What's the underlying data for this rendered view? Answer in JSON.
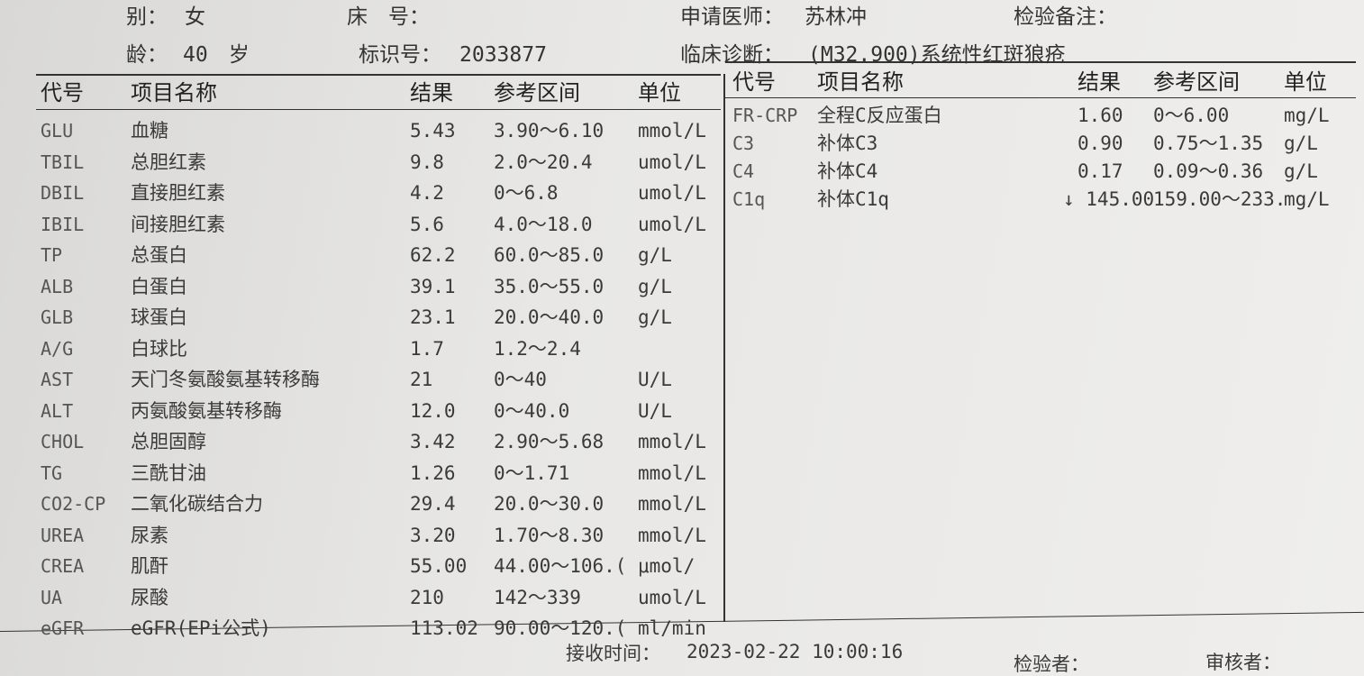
{
  "header": {
    "fields": [
      {
        "label": "别：",
        "value": "女"
      },
      {
        "label": "床　号："
      },
      {
        "label": "申请医师：",
        "value": "苏林冲"
      },
      {
        "label": "检验备注："
      },
      {
        "label": "龄：",
        "value": "40　岁"
      },
      {
        "label": "标识号：",
        "value": "2033877"
      },
      {
        "label": "临床诊断：",
        "value": "(M32.900)系统性红斑狼疮"
      }
    ]
  },
  "left_table": {
    "columns": [
      "代号",
      "项目名称",
      "结果",
      "参考区间",
      "单位"
    ],
    "rows": [
      [
        "GLU",
        "血糖",
        "5.43",
        "3.90～6.10",
        "mmol/L"
      ],
      [
        "TBIL",
        "总胆红素",
        "9.8",
        "2.0～20.4",
        "umol/L"
      ],
      [
        "DBIL",
        "直接胆红素",
        "4.2",
        "0～6.8",
        "umol/L"
      ],
      [
        "IBIL",
        "间接胆红素",
        "5.6",
        "4.0～18.0",
        "umol/L"
      ],
      [
        "TP",
        "总蛋白",
        "62.2",
        "60.0～85.0",
        "g/L"
      ],
      [
        "ALB",
        "白蛋白",
        "39.1",
        "35.0～55.0",
        "g/L"
      ],
      [
        "GLB",
        "球蛋白",
        "23.1",
        "20.0～40.0",
        "g/L"
      ],
      [
        "A/G",
        "白球比",
        "1.7",
        "1.2～2.4"
      ],
      [
        "AST",
        "天门冬氨酸氨基转移酶",
        "21",
        "0～40",
        "U/L"
      ],
      [
        "ALT",
        "丙氨酸氨基转移酶",
        "12.0",
        "0～40.0",
        "U/L"
      ],
      [
        "CHOL",
        "总胆固醇",
        "3.42",
        "2.90～5.68",
        "mmol/L"
      ],
      [
        "TG",
        "三酰甘油",
        "1.26",
        "0～1.71",
        "mmol/L"
      ],
      [
        "CO2-CP",
        "二氧化碳结合力",
        "29.4",
        "20.0～30.0",
        "mmol/L"
      ],
      [
        "UREA",
        "尿素",
        "3.20",
        "1.70～8.30",
        "mmol/L"
      ],
      [
        "CREA",
        "肌酐",
        "55.00",
        "44.00～106.(",
        "μmol/"
      ],
      [
        "UA",
        "尿酸",
        "210",
        "142～339",
        "umol/L"
      ],
      [
        "eGFR",
        "eGFR(EPi公式)",
        "113.02",
        "90.00～120.(",
        "ml/min"
      ]
    ]
  },
  "right_table": {
    "columns": [
      "代号",
      "项目名称",
      "结果",
      "参考区间",
      "单位"
    ],
    "rows": [
      [
        "FR-CRP",
        "全程C反应蛋白",
        "1.60",
        "0～6.00",
        "mg/L"
      ],
      [
        "C3",
        "补体C3",
        "0.90",
        "0.75～1.35",
        "g/L"
      ],
      [
        "C4",
        "补体C4",
        "0.17",
        "0.09～0.36",
        "g/L"
      ],
      [
        "C1q",
        "补体C1q",
        "↓ 145.00",
        "159.00～233.",
        "mg/L"
      ]
    ]
  },
  "footer": {
    "receive_label": "接收时间：",
    "receive_time": "2023-02-22 10:00:16",
    "tester_label": "检验者：",
    "reviewer_label": "审核者："
  }
}
